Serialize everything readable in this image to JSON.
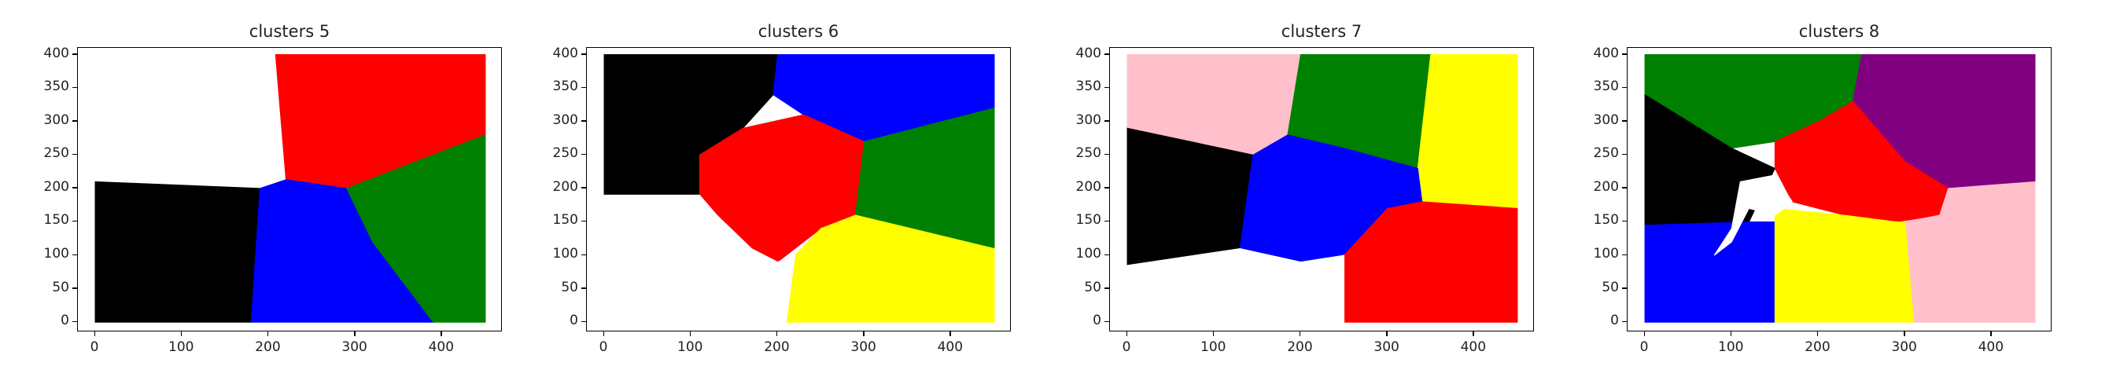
{
  "chart_data": [
    {
      "type": "scatter",
      "title": "clusters 5",
      "xlabel": "",
      "ylabel": "",
      "xlim": [
        -20,
        470
      ],
      "ylim": [
        -15,
        410
      ],
      "xticks": [
        0,
        100,
        200,
        300,
        400
      ],
      "yticks": [
        0,
        50,
        100,
        150,
        200,
        250,
        300,
        350,
        400
      ],
      "clusters": [
        {
          "name": "white",
          "color": "#ffffff",
          "polygon": [
            [
              0,
              400
            ],
            [
              210,
              400
            ],
            [
              215,
              215
            ],
            [
              190,
              200
            ],
            [
              0,
              210
            ]
          ]
        },
        {
          "name": "red",
          "color": "#ff0000",
          "polygon": [
            [
              208,
              400
            ],
            [
              450,
              400
            ],
            [
              450,
              280
            ],
            [
              290,
              200
            ],
            [
              220,
              213
            ]
          ]
        },
        {
          "name": "black",
          "color": "#000000",
          "polygon": [
            [
              0,
              210
            ],
            [
              190,
              200
            ],
            [
              180,
              0
            ],
            [
              0,
              0
            ]
          ]
        },
        {
          "name": "blue",
          "color": "#0000ff",
          "polygon": [
            [
              190,
              200
            ],
            [
              220,
              213
            ],
            [
              290,
              200
            ],
            [
              320,
              120
            ],
            [
              390,
              0
            ],
            [
              180,
              0
            ]
          ]
        },
        {
          "name": "green",
          "color": "#008000",
          "polygon": [
            [
              290,
              200
            ],
            [
              450,
              280
            ],
            [
              450,
              0
            ],
            [
              390,
              0
            ],
            [
              320,
              120
            ]
          ]
        }
      ]
    },
    {
      "type": "scatter",
      "title": "clusters 6",
      "xlabel": "",
      "ylabel": "",
      "xlim": [
        -20,
        470
      ],
      "ylim": [
        -15,
        410
      ],
      "xticks": [
        0,
        100,
        200,
        300,
        400
      ],
      "yticks": [
        0,
        50,
        100,
        150,
        200,
        250,
        300,
        350,
        400
      ],
      "clusters": [
        {
          "name": "black",
          "color": "#000000",
          "polygon": [
            [
              0,
              400
            ],
            [
              200,
              400
            ],
            [
              195,
              340
            ],
            [
              160,
              290
            ],
            [
              110,
              250
            ],
            [
              110,
              190
            ],
            [
              0,
              190
            ]
          ]
        },
        {
          "name": "blue",
          "color": "#0000ff",
          "polygon": [
            [
              200,
              400
            ],
            [
              450,
              400
            ],
            [
              450,
              320
            ],
            [
              300,
              270
            ],
            [
              230,
              310
            ],
            [
              195,
              340
            ]
          ]
        },
        {
          "name": "red",
          "color": "#ff0000",
          "polygon": [
            [
              160,
              290
            ],
            [
              230,
              310
            ],
            [
              300,
              270
            ],
            [
              290,
              160
            ],
            [
              250,
              140
            ],
            [
              200,
              90
            ],
            [
              170,
              110
            ],
            [
              130,
              160
            ],
            [
              110,
              190
            ],
            [
              110,
              250
            ]
          ]
        },
        {
          "name": "green",
          "color": "#008000",
          "polygon": [
            [
              300,
              270
            ],
            [
              450,
              320
            ],
            [
              450,
              110
            ],
            [
              290,
              160
            ]
          ]
        },
        {
          "name": "yellow",
          "color": "#ffff00",
          "polygon": [
            [
              290,
              160
            ],
            [
              450,
              110
            ],
            [
              450,
              0
            ],
            [
              210,
              0
            ],
            [
              220,
              100
            ],
            [
              250,
              140
            ]
          ]
        },
        {
          "name": "white",
          "color": "#ffffff",
          "polygon": [
            [
              0,
              190
            ],
            [
              110,
              190
            ],
            [
              130,
              160
            ],
            [
              170,
              110
            ],
            [
              200,
              90
            ],
            [
              220,
              100
            ],
            [
              210,
              0
            ],
            [
              0,
              0
            ]
          ]
        }
      ]
    },
    {
      "type": "scatter",
      "title": "clusters 7",
      "xlabel": "",
      "ylabel": "",
      "xlim": [
        -20,
        470
      ],
      "ylim": [
        -15,
        410
      ],
      "xticks": [
        0,
        100,
        200,
        300,
        400
      ],
      "yticks": [
        0,
        50,
        100,
        150,
        200,
        250,
        300,
        350,
        400
      ],
      "clusters": [
        {
          "name": "pink",
          "color": "#ffc0cb",
          "polygon": [
            [
              0,
              400
            ],
            [
              200,
              400
            ],
            [
              185,
              280
            ],
            [
              145,
              250
            ],
            [
              0,
              290
            ]
          ]
        },
        {
          "name": "green",
          "color": "#008000",
          "polygon": [
            [
              200,
              400
            ],
            [
              350,
              400
            ],
            [
              335,
              230
            ],
            [
              250,
              260
            ],
            [
              185,
              280
            ]
          ]
        },
        {
          "name": "yellow",
          "color": "#ffff00",
          "polygon": [
            [
              350,
              400
            ],
            [
              450,
              400
            ],
            [
              450,
              170
            ],
            [
              340,
              180
            ],
            [
              335,
              230
            ]
          ]
        },
        {
          "name": "black",
          "color": "#000000",
          "polygon": [
            [
              0,
              290
            ],
            [
              145,
              250
            ],
            [
              130,
              110
            ],
            [
              0,
              85
            ]
          ]
        },
        {
          "name": "blue",
          "color": "#0000ff",
          "polygon": [
            [
              145,
              250
            ],
            [
              185,
              280
            ],
            [
              250,
              260
            ],
            [
              335,
              230
            ],
            [
              340,
              180
            ],
            [
              300,
              170
            ],
            [
              250,
              100
            ],
            [
              200,
              90
            ],
            [
              130,
              110
            ]
          ]
        },
        {
          "name": "red",
          "color": "#ff0000",
          "polygon": [
            [
              340,
              180
            ],
            [
              450,
              170
            ],
            [
              450,
              0
            ],
            [
              250,
              0
            ],
            [
              250,
              100
            ],
            [
              300,
              170
            ]
          ]
        },
        {
          "name": "white",
          "color": "#ffffff",
          "polygon": [
            [
              0,
              85
            ],
            [
              130,
              110
            ],
            [
              200,
              90
            ],
            [
              250,
              100
            ],
            [
              250,
              0
            ],
            [
              0,
              0
            ]
          ]
        }
      ]
    },
    {
      "type": "scatter",
      "title": "clusters 8",
      "xlabel": "",
      "ylabel": "",
      "xlim": [
        -20,
        470
      ],
      "ylim": [
        -15,
        410
      ],
      "xticks": [
        0,
        100,
        200,
        300,
        400
      ],
      "yticks": [
        0,
        50,
        100,
        150,
        200,
        250,
        300,
        350,
        400
      ],
      "clusters": [
        {
          "name": "white",
          "color": "#ffffff",
          "polygon": [
            [
              0,
              400
            ],
            [
              0,
              340
            ],
            [
              0,
              0
            ],
            [
              0,
              400
            ]
          ]
        },
        {
          "name": "green",
          "color": "#008000",
          "polygon": [
            [
              0,
              400
            ],
            [
              250,
              400
            ],
            [
              240,
              330
            ],
            [
              200,
              300
            ],
            [
              150,
              270
            ],
            [
              100,
              260
            ],
            [
              0,
              340
            ]
          ]
        },
        {
          "name": "purple",
          "color": "#800080",
          "polygon": [
            [
              250,
              400
            ],
            [
              450,
              400
            ],
            [
              450,
              210
            ],
            [
              350,
              200
            ],
            [
              300,
              240
            ],
            [
              240,
              330
            ]
          ]
        },
        {
          "name": "black",
          "color": "#000000",
          "polygon": [
            [
              0,
              340
            ],
            [
              100,
              260
            ],
            [
              150,
              230
            ],
            [
              120,
              150
            ],
            [
              0,
              145
            ]
          ]
        },
        {
          "name": "red",
          "color": "#ff0000",
          "polygon": [
            [
              150,
              270
            ],
            [
              200,
              300
            ],
            [
              240,
              330
            ],
            [
              300,
              240
            ],
            [
              350,
              200
            ],
            [
              340,
              160
            ],
            [
              290,
              150
            ],
            [
              230,
              160
            ],
            [
              170,
              180
            ],
            [
              150,
              230
            ]
          ]
        },
        {
          "name": "pink",
          "color": "#ffc0cb",
          "polygon": [
            [
              350,
              200
            ],
            [
              450,
              210
            ],
            [
              450,
              0
            ],
            [
              310,
              0
            ],
            [
              300,
              150
            ],
            [
              340,
              160
            ]
          ]
        },
        {
          "name": "blue",
          "color": "#0000ff",
          "polygon": [
            [
              0,
              145
            ],
            [
              120,
              150
            ],
            [
              150,
              150
            ],
            [
              150,
              0
            ],
            [
              0,
              0
            ]
          ]
        },
        {
          "name": "yellow",
          "color": "#ffff00",
          "polygon": [
            [
              150,
              170
            ],
            [
              230,
              160
            ],
            [
              290,
              150
            ],
            [
              300,
              150
            ],
            [
              310,
              0
            ],
            [
              150,
              0
            ]
          ]
        },
        {
          "name": "white-blobs",
          "color": "#ffffff",
          "polygon": [
            [
              110,
              210
            ],
            [
              150,
              220
            ],
            [
              170,
              180
            ],
            [
              150,
              160
            ],
            [
              120,
              170
            ],
            [
              100,
              120
            ],
            [
              80,
              100
            ],
            [
              100,
              140
            ]
          ]
        }
      ]
    }
  ]
}
